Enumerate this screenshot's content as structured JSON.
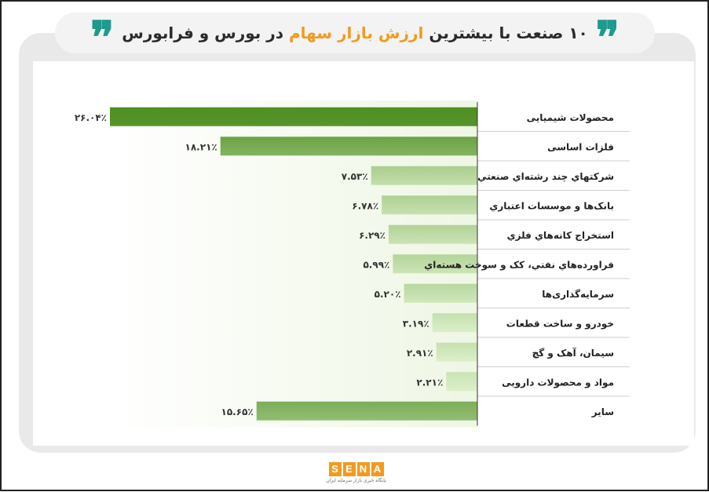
{
  "header": {
    "title_pre": "۱۰ صنعت با بیشترین ",
    "title_highlight": "ارزش بازار سهام",
    "title_post": " در بورس و فرابورس",
    "quote_glyph": "❞"
  },
  "footer": {
    "logo_letters": [
      "S",
      "E",
      "N",
      "A"
    ],
    "logo_subtitle": "پایگاه خبری بازار سرمایه ایران"
  },
  "colors": {
    "bar_dark": "#4f8f23",
    "bar_light": "#dcefc9",
    "accent": "#f29a1f",
    "quote": "#1e9a8e"
  },
  "chart_data": {
    "type": "bar",
    "orientation": "horizontal",
    "categories": [
      "محصولات شیمیایی",
      "فلزات اساسی",
      "شرکتهاي چند رشته‌اي صنعتي",
      "بانک‌ها و موسسات اعتباري",
      "استخراج کانه‌هاي فلزي",
      "فراورده‌هاي نفتي، کک و سوخت هسته‌اي",
      "سرمایه‌گذاری‌ها",
      "خودرو و ساخت قطعات",
      "سیمان، آهک و گچ",
      "مواد و محصولات دارویی",
      "سایر"
    ],
    "values": [
      26.04,
      18.21,
      7.53,
      6.78,
      6.29,
      5.99,
      5.2,
      3.19,
      2.91,
      2.21,
      15.65
    ],
    "labels": [
      "۲۶.۰۴٪",
      "۱۸.۲۱٪",
      "۷.۵۳٪",
      "۶.۷۸٪",
      "۶.۲۹٪",
      "۵.۹۹٪",
      "۵.۲۰٪",
      "۳.۱۹٪",
      "۲.۹۱٪",
      "۲.۲۱٪",
      "۱۵.۶۵٪"
    ],
    "xlim": [
      0,
      26.04
    ],
    "grid": false
  }
}
